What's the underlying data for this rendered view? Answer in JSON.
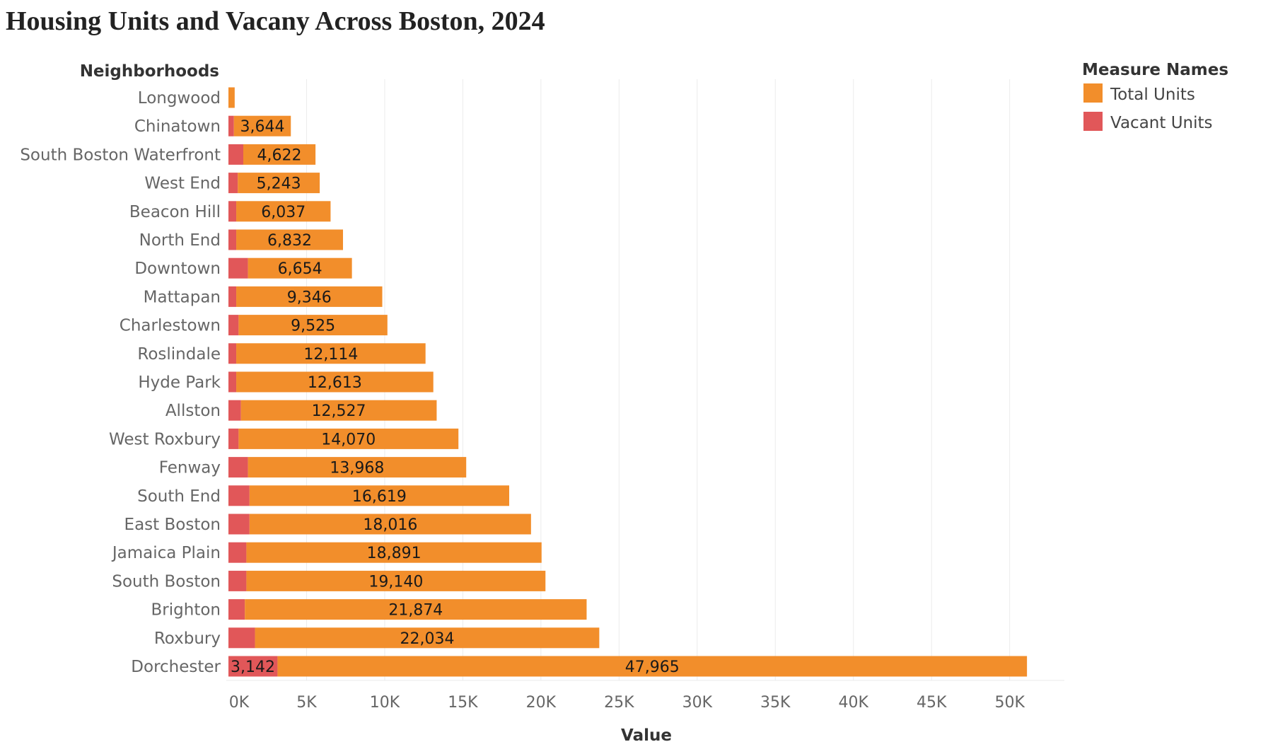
{
  "colors": {
    "total_units": "#F28E2B",
    "vacant_units": "#E15759",
    "gridline": "#EBEBEB",
    "axis_text": "#666666",
    "header_text": "#333333"
  },
  "chart_data": {
    "type": "bar",
    "orientation": "horizontal",
    "stacked": true,
    "title": "Housing Units and Vacany Across Boston, 2024",
    "row_header": "Neighborhoods",
    "xlabel": "Value",
    "xlim": [
      0,
      53500
    ],
    "xticks": [
      0,
      5000,
      10000,
      15000,
      20000,
      25000,
      30000,
      35000,
      40000,
      45000,
      50000
    ],
    "xtick_labels": [
      "0K",
      "5K",
      "10K",
      "15K",
      "20K",
      "25K",
      "30K",
      "35K",
      "40K",
      "45K",
      "50K"
    ],
    "grid": true,
    "legend": {
      "title": "Measure Names",
      "position": "top-right",
      "entries": [
        "Total Units",
        "Vacant Units"
      ]
    },
    "categories": [
      "Longwood",
      "Chinatown",
      "South Boston Waterfront",
      "West End",
      "Beacon Hill",
      "North End",
      "Downtown",
      "Mattapan",
      "Charlestown",
      "Roslindale",
      "Hyde Park",
      "Allston",
      "West Roxbury",
      "Fenway",
      "South End",
      "East Boston",
      "Jamaica Plain",
      "South Boston",
      "Brighton",
      "Roxbury",
      "Dorchester"
    ],
    "series": [
      {
        "name": "Vacant Units",
        "values": [
          0,
          350,
          950,
          600,
          500,
          500,
          1250,
          500,
          650,
          500,
          500,
          800,
          650,
          1250,
          1350,
          1350,
          1150,
          1150,
          1050,
          1700,
          3142
        ],
        "labels": [
          "",
          "",
          "",
          "",
          "",
          "",
          "",
          "",
          "",
          "",
          "",
          "",
          "",
          "",
          "",
          "",
          "",
          "",
          "",
          "",
          "3,142"
        ]
      },
      {
        "name": "Total Units",
        "values": [
          400,
          3644,
          4622,
          5243,
          6037,
          6832,
          6654,
          9346,
          9525,
          12114,
          12613,
          12527,
          14070,
          13968,
          16619,
          18016,
          18891,
          19140,
          21874,
          22034,
          47965
        ],
        "labels": [
          "",
          "3,644",
          "4,622",
          "5,243",
          "6,037",
          "6,832",
          "6,654",
          "9,346",
          "9,525",
          "12,114",
          "12,613",
          "12,527",
          "14,070",
          "13,968",
          "16,619",
          "18,016",
          "18,891",
          "19,140",
          "21,874",
          "22,034",
          "47,965"
        ]
      }
    ]
  }
}
